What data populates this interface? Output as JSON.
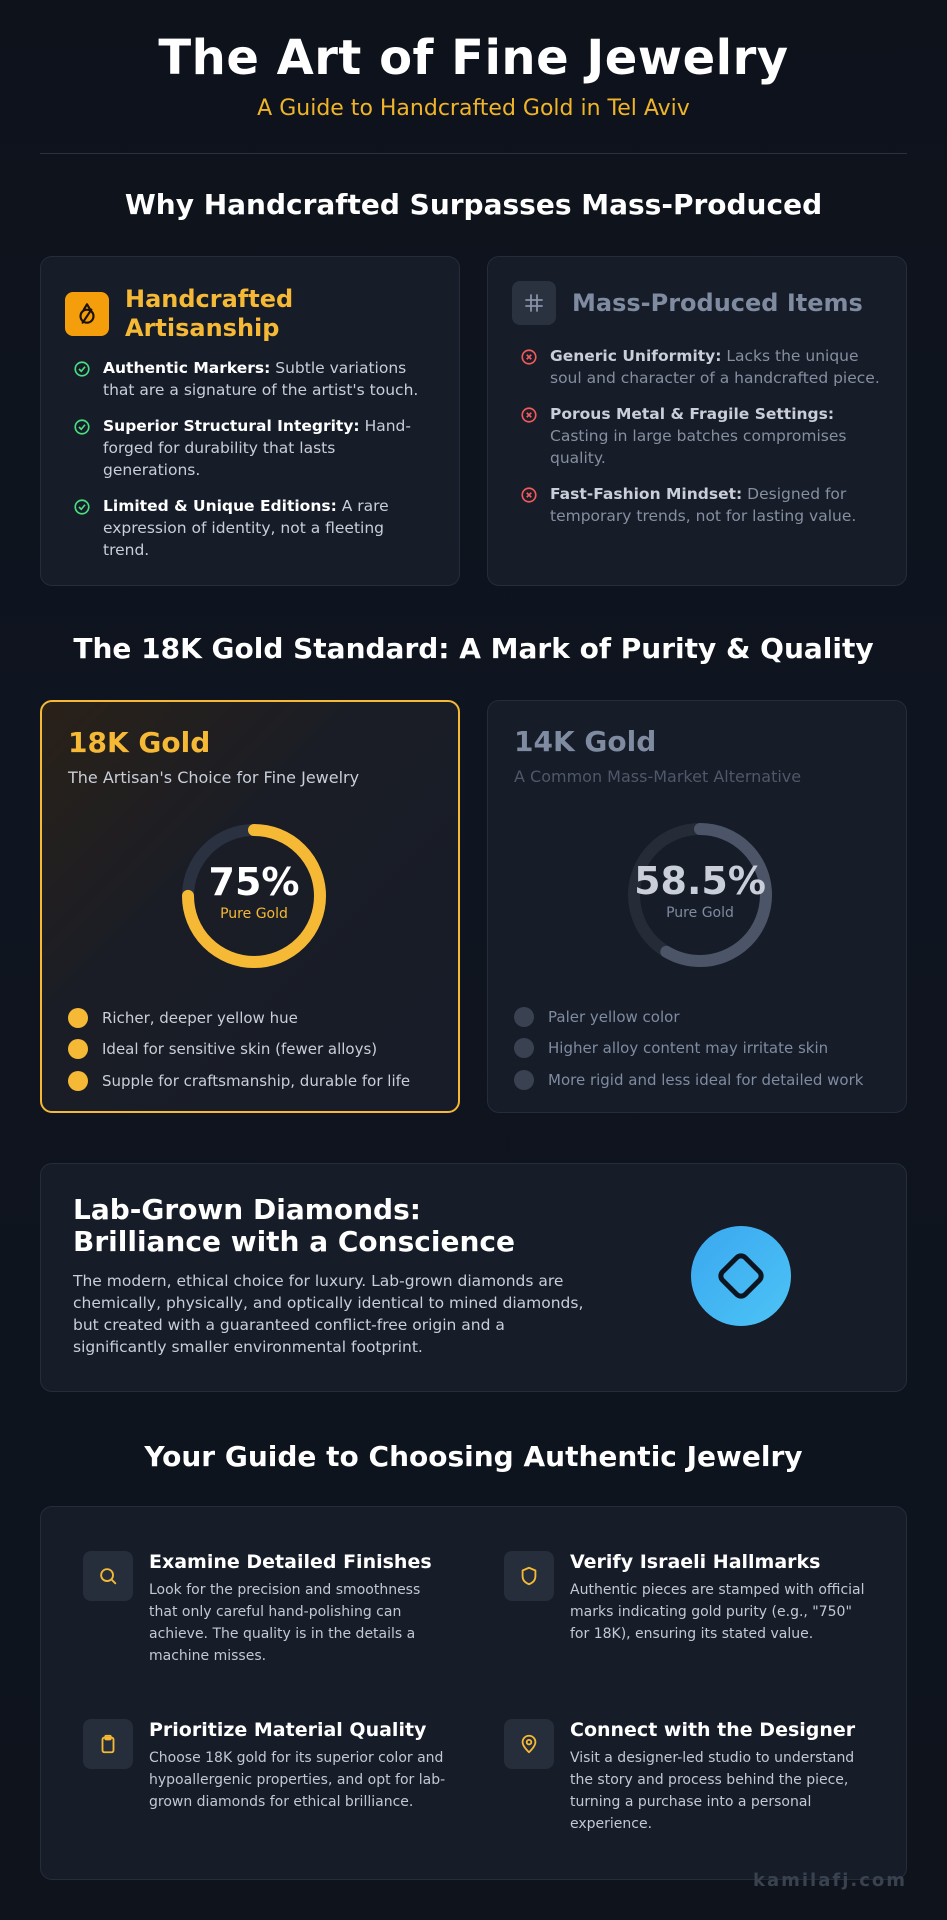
{
  "header": {
    "title": "The Art of Fine Jewelry",
    "subtitle": "A Guide to Handcrafted Gold in Tel Aviv"
  },
  "comparison": {
    "title": "Why Handcrafted Surpasses Mass-Produced",
    "handcrafted": {
      "title_line1": "Handcrafted",
      "title_line2": "Artisanship",
      "icon": "hand-ring-icon",
      "items": [
        {
          "bold": "Authentic Markers:",
          "text": " Subtle variations that are a signature of the artist's touch."
        },
        {
          "bold": "Superior Structural Integrity:",
          "text": " Hand-forged for durability that lasts generations."
        },
        {
          "bold": "Limited & Unique Editions:",
          "text": " A rare expression of identity, not a fleeting trend."
        }
      ]
    },
    "mass": {
      "title": "Mass-Produced Items",
      "icon": "grid-hash-icon",
      "items": [
        {
          "bold": "Generic Uniformity:",
          "text": " Lacks the unique soul and character of a handcrafted piece."
        },
        {
          "bold": "Porous Metal & Fragile Settings:",
          "text": " Casting in large batches compromises quality."
        },
        {
          "bold": "Fast-Fashion Mindset:",
          "text": " Designed for temporary trends, not for lasting value."
        }
      ]
    }
  },
  "gold": {
    "title": "The 18K Gold Standard: A Mark of Purity & Quality",
    "k18": {
      "name": "18K Gold",
      "tagline": "The Artisan's Choice for Fine Jewelry",
      "purity_label": "75%",
      "purity_value": 0.75,
      "purity_caption": "Pure Gold",
      "features": [
        "Richer, deeper yellow hue",
        "Ideal for sensitive skin (fewer alloys)",
        "Supple for craftsmanship, durable for life"
      ],
      "accent": "#f5b935"
    },
    "k14": {
      "name": "14K Gold",
      "tagline": "A Common Mass-Market Alternative",
      "purity_label": "58.5%",
      "purity_value": 0.585,
      "purity_caption": "Pure Gold",
      "features": [
        "Paler yellow color",
        "Higher alloy content may irritate skin",
        "More rigid and less ideal for detailed work"
      ],
      "accent": "#4b5567"
    }
  },
  "diamonds": {
    "title_line1": "Lab-Grown Diamonds:",
    "title_line2": "Brilliance with a Conscience",
    "text": "The modern, ethical choice for luxury. Lab-grown diamonds are chemically, physically, and optically identical to mined diamonds, but created with a guaranteed conflict-free origin and a significantly smaller environmental footprint.",
    "icon": "diamond-icon"
  },
  "guide": {
    "title": "Your Guide to Choosing Authentic Jewelry",
    "items": [
      {
        "title": "Examine Detailed Finishes",
        "text": "Look for the precision and smoothness that only careful hand-polishing can achieve. The quality is in the details a machine misses.",
        "icon": "magnifier-icon"
      },
      {
        "title": "Verify Israeli Hallmarks",
        "text": "Authentic pieces are stamped with official marks indicating gold purity (e.g., \"750\" for 18K), ensuring its stated value.",
        "icon": "shield-icon"
      },
      {
        "title": "Prioritize Material Quality",
        "text": "Choose 18K gold for its superior color and hypoallergenic properties, and opt for lab-grown diamonds for ethical brilliance.",
        "icon": "clipboard-icon"
      },
      {
        "title": "Connect with the Designer",
        "text": "Visit a designer-led studio to understand the story and process behind the piece, turning a purchase into a personal experience.",
        "icon": "location-pin-icon"
      }
    ]
  },
  "footer": {
    "watermark": "kamilafj.com"
  }
}
